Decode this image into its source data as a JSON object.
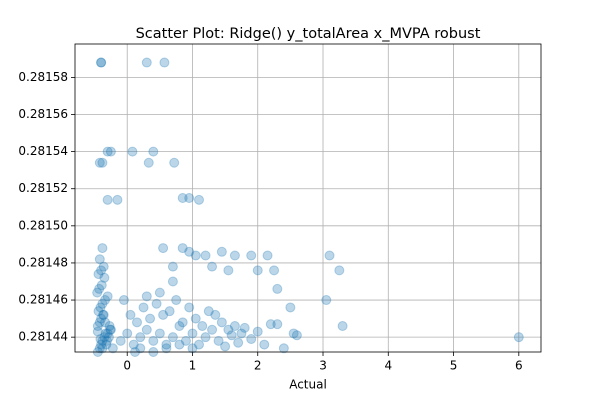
{
  "chart_data": {
    "type": "scatter",
    "title": "Scatter Plot: Ridge() y_totalArea x_MVPA robust",
    "x_label": "Actual",
    "color": "#1f77b4",
    "alpha": 0.3,
    "grid": true,
    "xlim": [
      -0.8,
      6.34
    ],
    "ylim": [
      0.281432,
      0.281598
    ],
    "xticks": [
      0,
      1,
      2,
      3,
      4,
      5,
      6
    ],
    "yticks": [
      0.28144,
      0.28146,
      0.28148,
      {
        "value": 0.2815,
        "label": "0.28150"
      },
      0.28152,
      0.28154,
      0.28156,
      0.28158
    ],
    "x": [
      -0.45,
      -0.42,
      -0.4,
      -0.38,
      -0.35,
      -0.3,
      -0.25,
      -0.45,
      -0.42,
      -0.4,
      -0.36,
      -0.32,
      -0.28,
      -0.22,
      -0.44,
      -0.41,
      -0.38,
      -0.34,
      -0.3,
      -0.26,
      -0.46,
      -0.43,
      -0.39,
      -0.35,
      -0.31,
      -0.27,
      -0.44,
      -0.4,
      -0.36,
      -0.33,
      -0.42,
      -0.38,
      -0.34,
      -0.45,
      -0.41,
      -0.37,
      -0.1,
      0.0,
      0.1,
      0.2,
      0.3,
      0.4,
      0.5,
      0.6,
      0.7,
      0.8,
      0.9,
      1.0,
      1.1,
      1.2,
      1.3,
      1.4,
      1.5,
      1.6,
      1.7,
      1.8,
      1.9,
      2.0,
      2.1,
      2.2,
      0.05,
      0.15,
      0.25,
      0.35,
      0.45,
      0.55,
      0.65,
      0.75,
      0.85,
      0.95,
      1.05,
      1.15,
      1.25,
      1.35,
      1.45,
      1.55,
      1.65,
      1.75,
      0.2,
      0.4,
      0.6,
      0.8,
      1.0,
      0.3,
      0.5,
      0.7,
      -0.05,
      0.12,
      2.4,
      2.55,
      2.6,
      2.3,
      -0.4,
      -0.4,
      0.3,
      0.57,
      -0.3,
      -0.25,
      0.08,
      0.4,
      -0.42,
      -0.38,
      0.33,
      0.72,
      -0.3,
      -0.15,
      0.85,
      0.95,
      1.1,
      -0.38,
      0.55,
      0.85,
      0.95,
      1.05,
      1.2,
      1.45,
      1.65,
      1.9,
      2.15,
      3.1,
      3.25,
      2.0,
      2.25,
      1.55,
      0.7,
      1.3,
      6.0,
      3.3,
      3.05,
      2.5,
      2.3
    ],
    "y": [
      0.281432,
      0.281434,
      0.281436,
      0.281438,
      0.28144,
      0.281442,
      0.281444,
      0.281446,
      0.281448,
      0.28145,
      0.281452,
      0.281436,
      0.28144,
      0.281434,
      0.281454,
      0.281456,
      0.281458,
      0.28146,
      0.281462,
      0.281444,
      0.281464,
      0.281466,
      0.281468,
      0.281472,
      0.281438,
      0.281446,
      0.281474,
      0.281476,
      0.281478,
      0.281442,
      0.281482,
      0.281434,
      0.281448,
      0.281443,
      0.281439,
      0.281452,
      0.281438,
      0.281442,
      0.281436,
      0.28144,
      0.281444,
      0.281438,
      0.281442,
      0.281436,
      0.28144,
      0.281446,
      0.281438,
      0.281442,
      0.281436,
      0.28144,
      0.281444,
      0.281438,
      0.281435,
      0.281441,
      0.281437,
      0.281445,
      0.281439,
      0.281443,
      0.281436,
      0.281447,
      0.281452,
      0.281448,
      0.281456,
      0.28145,
      0.281458,
      0.281452,
      0.281454,
      0.28146,
      0.281448,
      0.281456,
      0.28145,
      0.281446,
      0.281454,
      0.281452,
      0.281448,
      0.281444,
      0.281446,
      0.281442,
      0.281434,
      0.281432,
      0.281434,
      0.281436,
      0.281434,
      0.281462,
      0.281464,
      0.28147,
      0.28146,
      0.281432,
      0.281434,
      0.281442,
      0.281441,
      0.281447,
      0.281588,
      0.281588,
      0.281588,
      0.281588,
      0.28154,
      0.28154,
      0.28154,
      0.28154,
      0.281534,
      0.281534,
      0.281534,
      0.281534,
      0.281514,
      0.281514,
      0.281515,
      0.281515,
      0.281514,
      0.281488,
      0.281488,
      0.281488,
      0.281486,
      0.281484,
      0.281484,
      0.281486,
      0.281484,
      0.281484,
      0.281484,
      0.281484,
      0.281476,
      0.281476,
      0.281476,
      0.281476,
      0.281478,
      0.281478,
      0.28144,
      0.281446,
      0.28146,
      0.281456,
      0.281466
    ]
  }
}
